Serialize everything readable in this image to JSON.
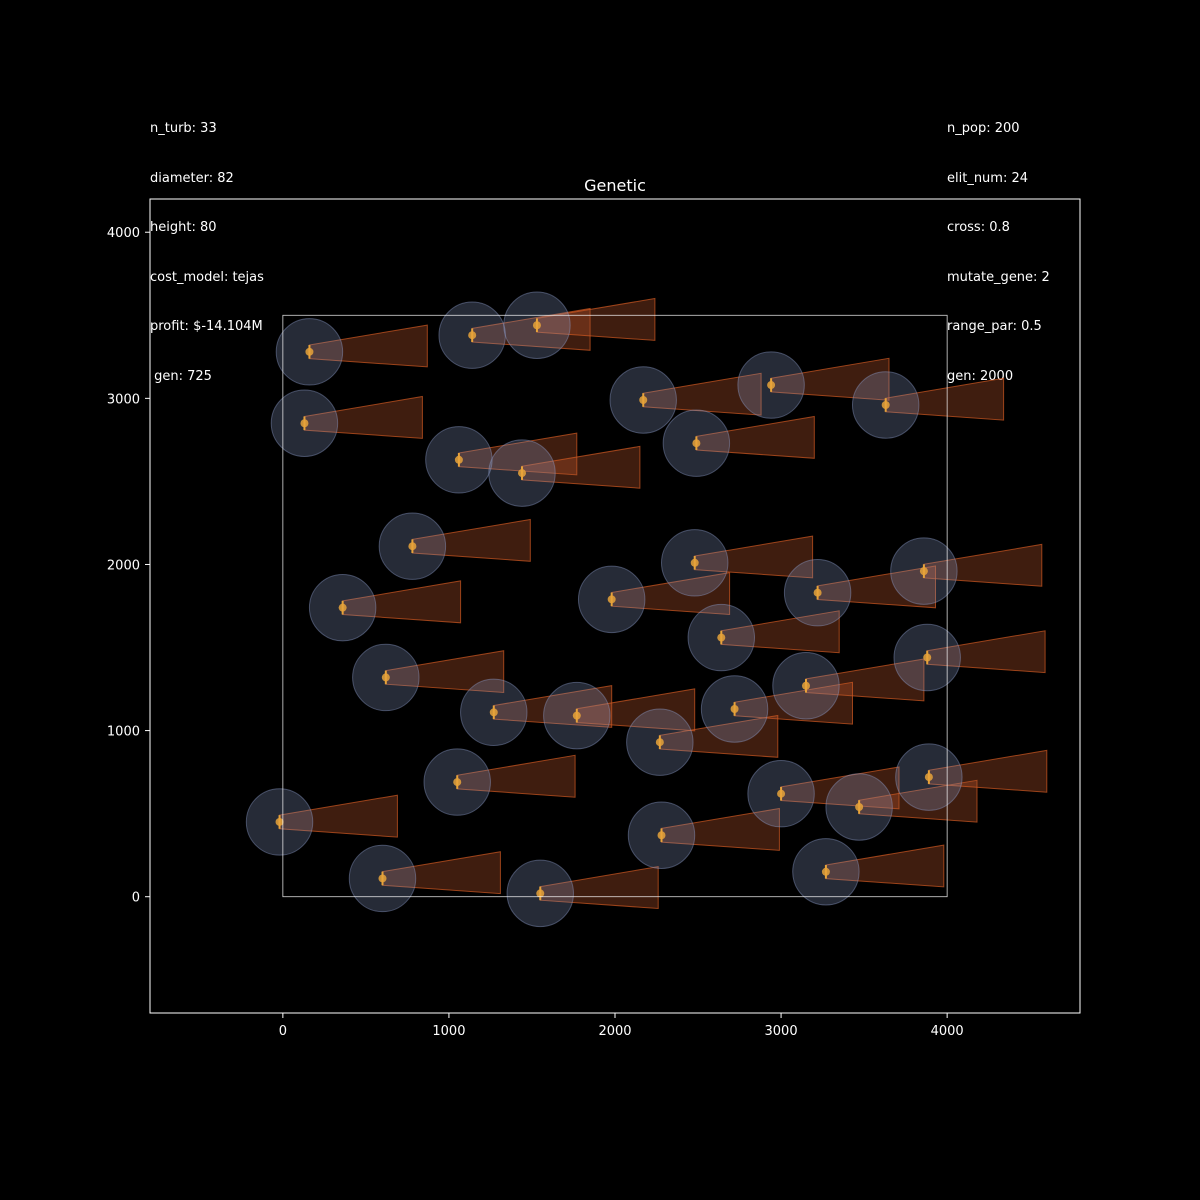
{
  "left_info": [
    {
      "text": "n_turb: 33"
    },
    {
      "text": "diameter: 82"
    },
    {
      "text": "height: 80"
    },
    {
      "text": "cost_model: tejas"
    },
    {
      "text": "profit: $-14.104M"
    },
    {
      "text": " gen: 725"
    }
  ],
  "right_info": [
    {
      "text": "n_pop: 200"
    },
    {
      "text": "elit_num: 24"
    },
    {
      "text": "cross: 0.8"
    },
    {
      "text": "mutate_gene: 2"
    },
    {
      "text": "range_par: 0.5"
    },
    {
      "text": "gen: 2000"
    }
  ],
  "chart_data": {
    "type": "scatter",
    "title": "Genetic",
    "xlabel": "",
    "ylabel": "",
    "xlim": [
      -800,
      4800
    ],
    "ylim": [
      -700,
      4200
    ],
    "xticks": [
      0,
      1000,
      2000,
      3000,
      4000
    ],
    "yticks": [
      0,
      1000,
      2000,
      3000,
      4000
    ],
    "boundary": {
      "x": [
        0,
        4000
      ],
      "y": [
        0,
        3500
      ]
    },
    "turbine_diameter": 82,
    "rotor_circle_radius": 200,
    "wake_length": 710,
    "wake_start_halfwidth": 41,
    "wake_end_halfwidth": 126,
    "wake_tilt": 35,
    "colors": {
      "turbine": "#e8a33a",
      "rotor": "#8a9ac6",
      "wake_fill": "#b4522a",
      "wake_edge": "#d25a22",
      "frame": "#ffffff",
      "boundary": "#ffffff"
    },
    "turbines": [
      {
        "x": 160,
        "y": 3280
      },
      {
        "x": 1140,
        "y": 3380
      },
      {
        "x": 1530,
        "y": 3440
      },
      {
        "x": 130,
        "y": 2850
      },
      {
        "x": 2170,
        "y": 2990
      },
      {
        "x": 2940,
        "y": 3080
      },
      {
        "x": 3630,
        "y": 2960
      },
      {
        "x": 1060,
        "y": 2630
      },
      {
        "x": 1440,
        "y": 2550
      },
      {
        "x": 2490,
        "y": 2730
      },
      {
        "x": 780,
        "y": 2110
      },
      {
        "x": 2480,
        "y": 2010
      },
      {
        "x": 3860,
        "y": 1960
      },
      {
        "x": 360,
        "y": 1740
      },
      {
        "x": 1980,
        "y": 1790
      },
      {
        "x": 3220,
        "y": 1830
      },
      {
        "x": 2640,
        "y": 1560
      },
      {
        "x": 3880,
        "y": 1440
      },
      {
        "x": 620,
        "y": 1320
      },
      {
        "x": 3150,
        "y": 1270
      },
      {
        "x": 1270,
        "y": 1110
      },
      {
        "x": 1770,
        "y": 1090
      },
      {
        "x": 2720,
        "y": 1130
      },
      {
        "x": 2270,
        "y": 930
      },
      {
        "x": 1050,
        "y": 690
      },
      {
        "x": 3000,
        "y": 620
      },
      {
        "x": 3470,
        "y": 540
      },
      {
        "x": 3890,
        "y": 720
      },
      {
        "x": -20,
        "y": 450
      },
      {
        "x": 2280,
        "y": 370
      },
      {
        "x": 600,
        "y": 110
      },
      {
        "x": 1550,
        "y": 20
      },
      {
        "x": 3270,
        "y": 150
      }
    ]
  }
}
